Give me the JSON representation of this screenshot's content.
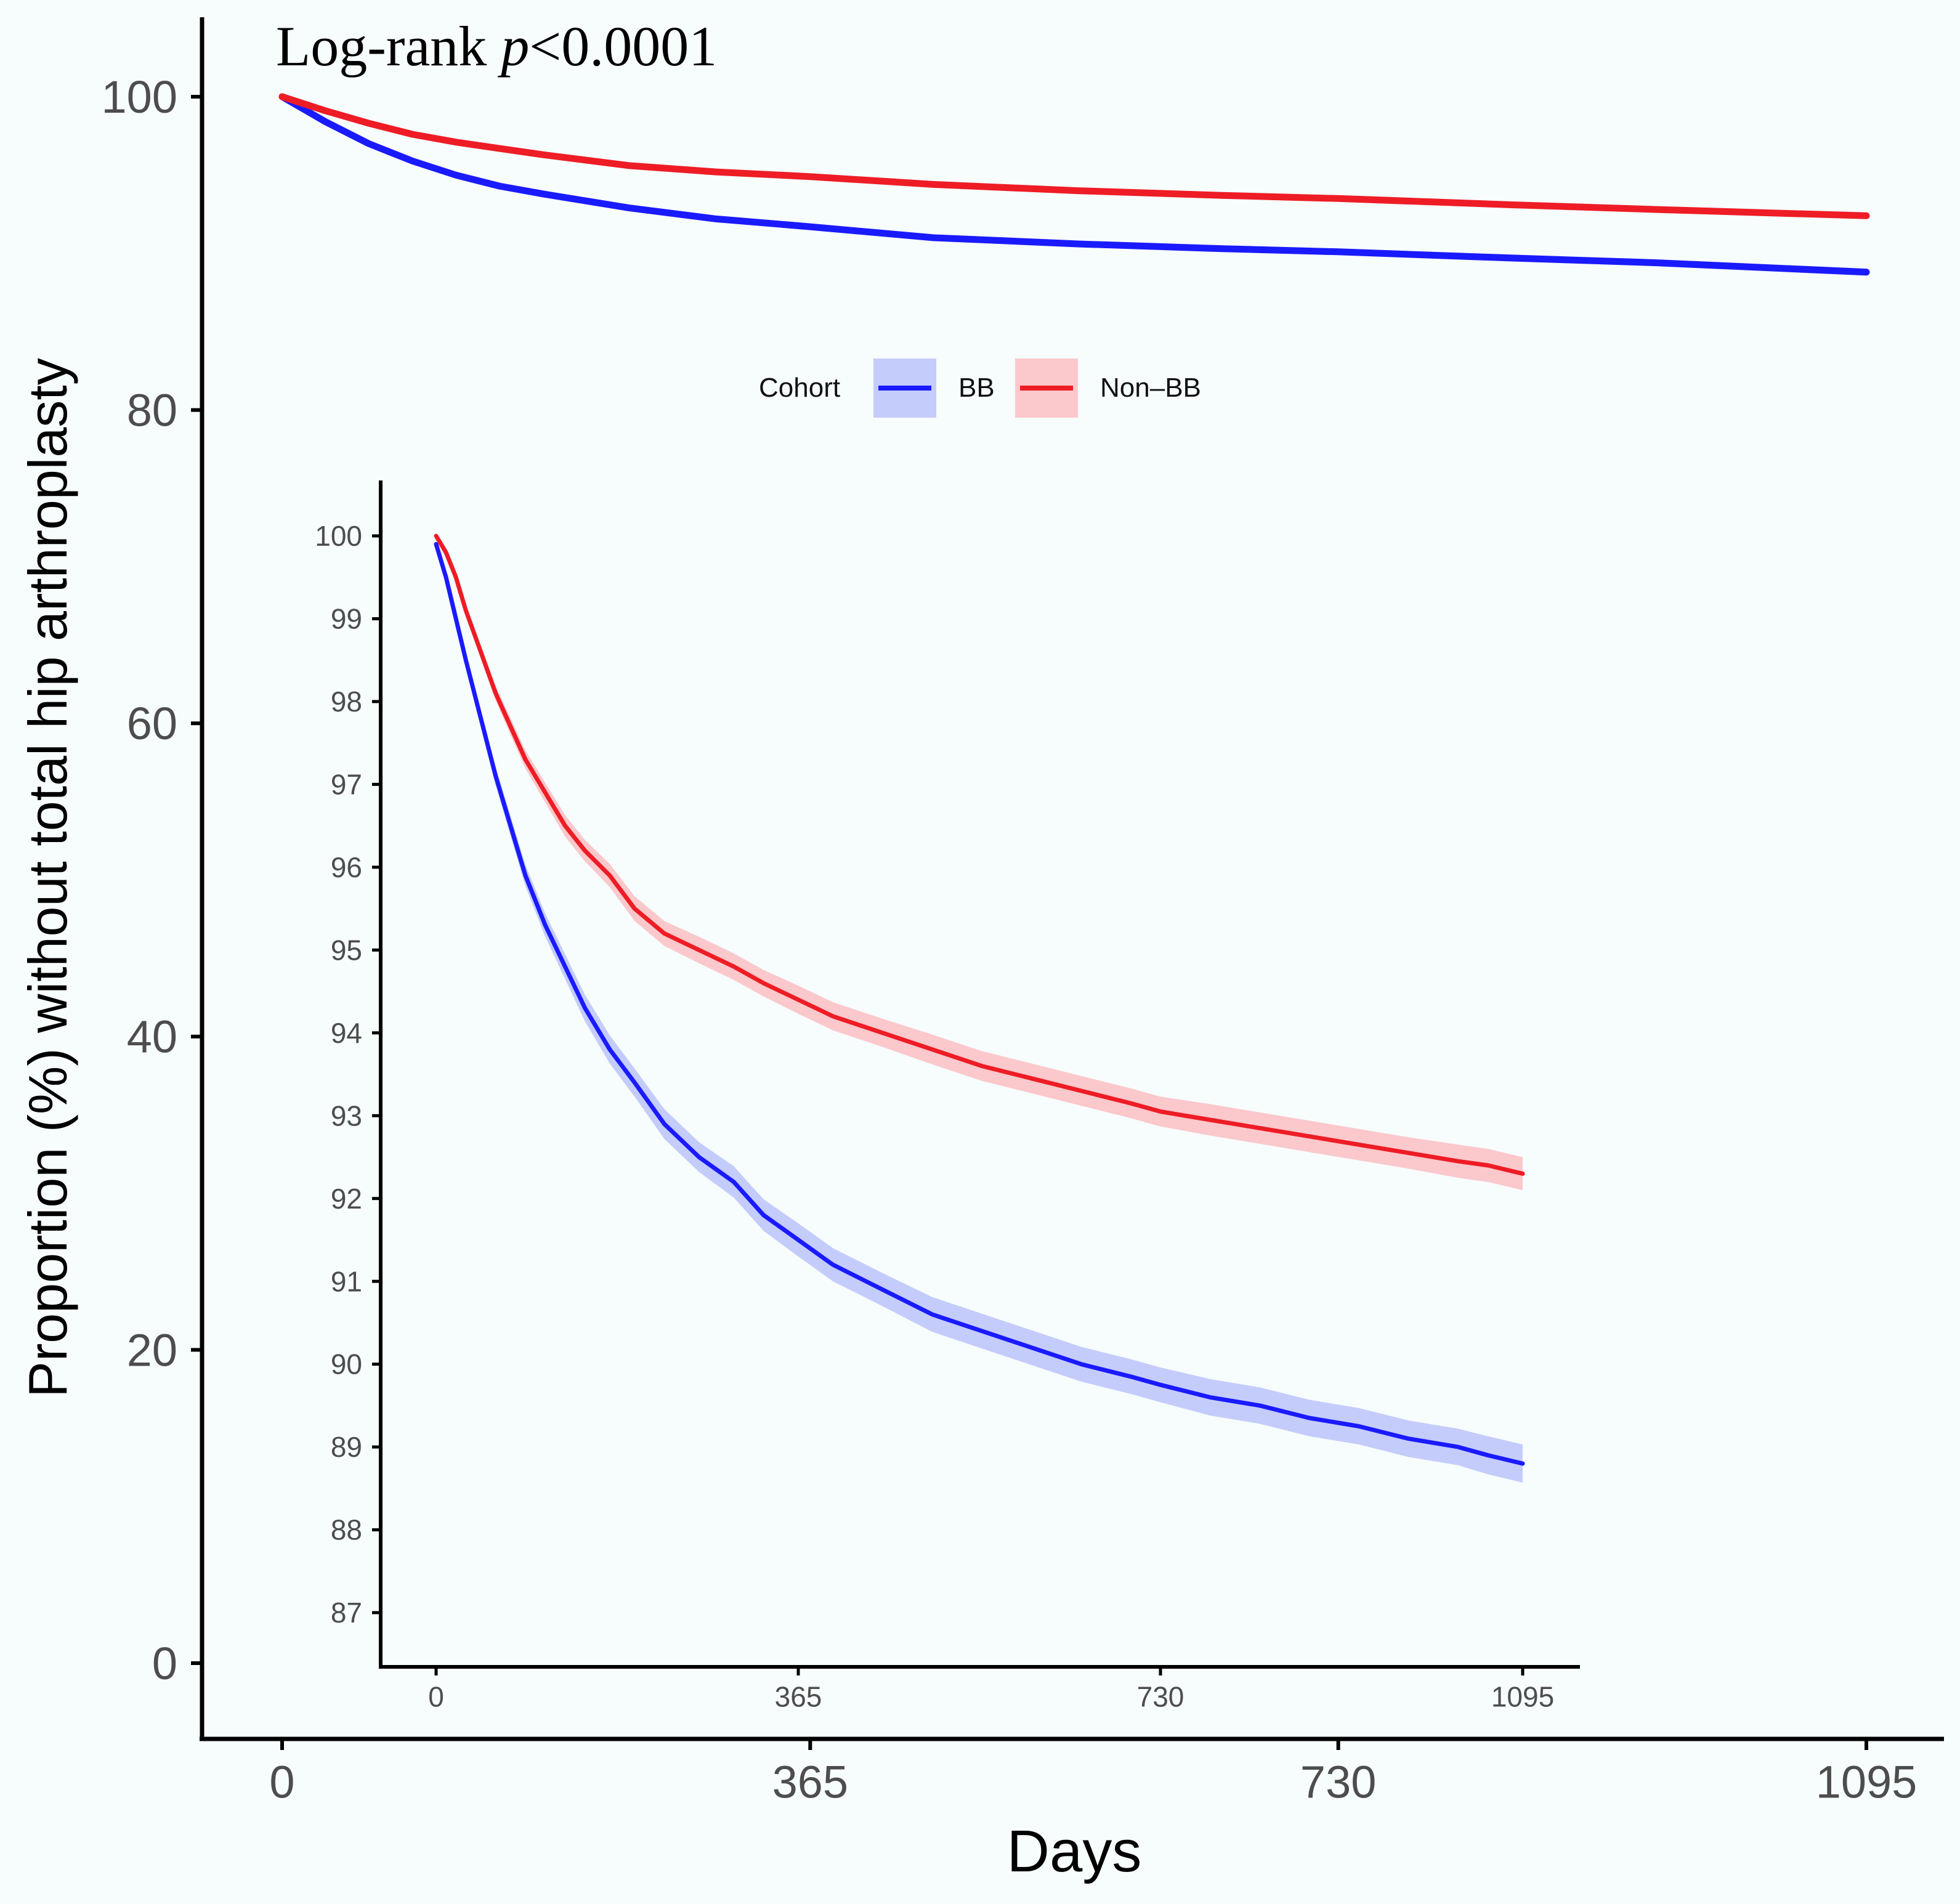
{
  "chart_data": [
    {
      "id": "main",
      "type": "line",
      "title": "Log-rank p<0.0001",
      "title_prefix": "Log-rank ",
      "title_italic": "p",
      "title_suffix": "<0.0001",
      "xlabel": "Days",
      "ylabel": "Proportion (%) without total hip arthroplasty",
      "xlim": [
        0,
        1095
      ],
      "ylim": [
        0,
        100
      ],
      "xticks": [
        0,
        365,
        730,
        1095
      ],
      "yticks": [
        0,
        20,
        40,
        60,
        80,
        100
      ],
      "legend": {
        "title": "Cohort",
        "placement": "top-center",
        "entries": [
          "BB",
          "Non–BB"
        ]
      },
      "series": [
        {
          "name": "BB",
          "color": "#1a1aff",
          "band_color": "#c4ccfb",
          "x": [
            0,
            30,
            60,
            90,
            120,
            150,
            180,
            240,
            300,
            365,
            450,
            550,
            650,
            730,
            850,
            950,
            1095
          ],
          "values": [
            100,
            98.4,
            97.0,
            95.9,
            95.0,
            94.3,
            93.8,
            92.9,
            92.2,
            91.7,
            91.0,
            90.6,
            90.3,
            90.1,
            89.7,
            89.4,
            88.8
          ],
          "ci_half_width": [
            0,
            0.1,
            0.12,
            0.14,
            0.15,
            0.16,
            0.17,
            0.18,
            0.19,
            0.2,
            0.2,
            0.21,
            0.21,
            0.21,
            0.22,
            0.22,
            0.23
          ]
        },
        {
          "name": "Non–BB",
          "color": "#ee1c25",
          "band_color": "#fbc8cc",
          "x": [
            0,
            30,
            60,
            90,
            120,
            150,
            180,
            240,
            300,
            365,
            450,
            550,
            650,
            730,
            850,
            950,
            1095
          ],
          "values": [
            100,
            99.1,
            98.3,
            97.6,
            97.1,
            96.7,
            96.3,
            95.6,
            95.2,
            94.9,
            94.4,
            94.0,
            93.7,
            93.5,
            93.1,
            92.8,
            92.4
          ],
          "ci_half_width": [
            0,
            0.08,
            0.1,
            0.12,
            0.13,
            0.14,
            0.15,
            0.16,
            0.17,
            0.17,
            0.18,
            0.18,
            0.18,
            0.19,
            0.19,
            0.2,
            0.2
          ]
        }
      ]
    },
    {
      "id": "inset",
      "type": "line",
      "title": "",
      "xlabel": "",
      "ylabel": "",
      "xlim": [
        0,
        1095
      ],
      "ylim": [
        87,
        100
      ],
      "xticks": [
        0,
        365,
        730,
        1095
      ],
      "yticks": [
        87,
        88,
        89,
        90,
        91,
        92,
        93,
        94,
        95,
        96,
        97,
        98,
        99,
        100
      ],
      "series": [
        {
          "name": "BB",
          "color": "#1a1aff",
          "band_color": "#c4ccfb",
          "x": [
            0,
            10,
            20,
            30,
            45,
            60,
            75,
            90,
            110,
            130,
            150,
            175,
            200,
            230,
            265,
            300,
            330,
            365,
            400,
            450,
            500,
            550,
            600,
            650,
            700,
            730,
            780,
            830,
            880,
            930,
            980,
            1030,
            1060,
            1095
          ],
          "values": [
            99.9,
            99.5,
            99.0,
            98.5,
            97.8,
            97.1,
            96.5,
            95.9,
            95.3,
            94.8,
            94.3,
            93.8,
            93.4,
            92.9,
            92.5,
            92.2,
            91.8,
            91.5,
            91.2,
            90.9,
            90.6,
            90.4,
            90.2,
            90.0,
            89.85,
            89.75,
            89.6,
            89.5,
            89.35,
            89.25,
            89.1,
            89.0,
            88.9,
            88.8
          ],
          "ci_half_width": [
            0,
            0.05,
            0.07,
            0.08,
            0.1,
            0.11,
            0.12,
            0.13,
            0.14,
            0.15,
            0.16,
            0.17,
            0.17,
            0.18,
            0.18,
            0.19,
            0.19,
            0.2,
            0.2,
            0.2,
            0.21,
            0.21,
            0.21,
            0.21,
            0.21,
            0.21,
            0.22,
            0.22,
            0.22,
            0.22,
            0.22,
            0.22,
            0.23,
            0.23
          ]
        },
        {
          "name": "Non–BB",
          "color": "#ee1c25",
          "band_color": "#fbc8cc",
          "x": [
            0,
            10,
            20,
            30,
            45,
            60,
            75,
            90,
            110,
            130,
            150,
            175,
            200,
            230,
            265,
            300,
            330,
            365,
            400,
            450,
            500,
            550,
            600,
            650,
            700,
            730,
            780,
            830,
            880,
            930,
            980,
            1030,
            1060,
            1095
          ],
          "values": [
            100,
            99.8,
            99.5,
            99.1,
            98.6,
            98.1,
            97.7,
            97.3,
            96.9,
            96.5,
            96.2,
            95.9,
            95.5,
            95.2,
            95.0,
            94.8,
            94.6,
            94.4,
            94.2,
            94.0,
            93.8,
            93.6,
            93.45,
            93.3,
            93.15,
            93.05,
            92.95,
            92.85,
            92.75,
            92.65,
            92.55,
            92.45,
            92.4,
            92.3
          ],
          "ci_half_width": [
            0,
            0.04,
            0.05,
            0.06,
            0.08,
            0.09,
            0.1,
            0.11,
            0.12,
            0.13,
            0.13,
            0.14,
            0.15,
            0.15,
            0.16,
            0.16,
            0.16,
            0.17,
            0.17,
            0.17,
            0.18,
            0.18,
            0.18,
            0.18,
            0.18,
            0.18,
            0.19,
            0.19,
            0.19,
            0.19,
            0.19,
            0.2,
            0.2,
            0.2
          ]
        }
      ]
    }
  ]
}
